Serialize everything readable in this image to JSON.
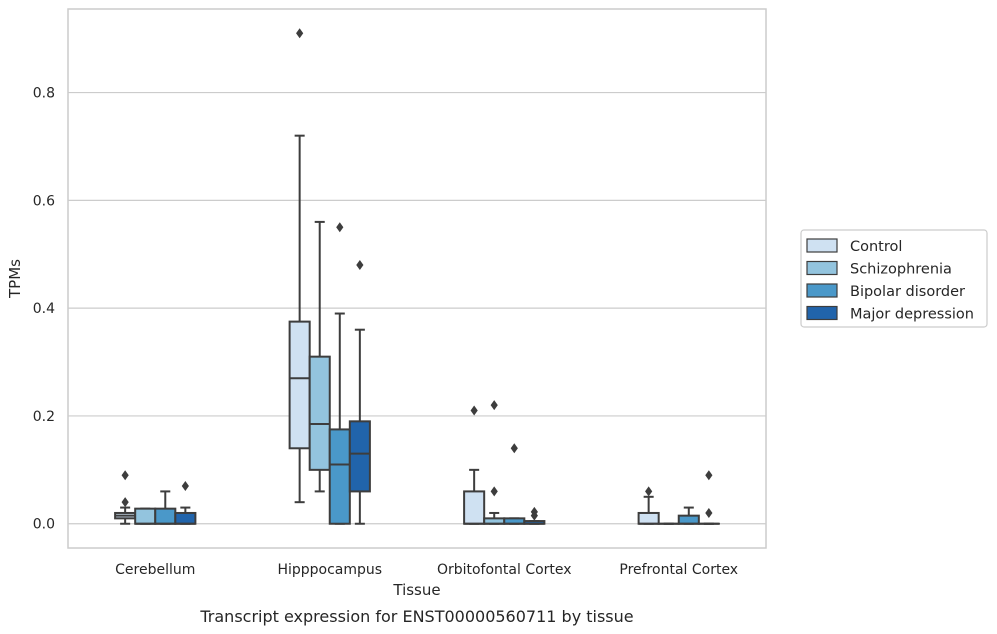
{
  "caption": "Transcript expression for ENST00000560711 by tissue",
  "chart_data": {
    "type": "boxplot",
    "xlabel": "Tissue",
    "ylabel": "TPMs",
    "ylim": [
      -0.045,
      0.955
    ],
    "yticks": [
      0.0,
      0.2,
      0.4,
      0.6,
      0.8
    ],
    "ytick_labels": [
      "0.0",
      "0.2",
      "0.4",
      "0.6",
      "0.8"
    ],
    "grid": "horizontal",
    "legend_position": "right",
    "categories": [
      "Cerebellum",
      "Hipppocampus",
      "Orbitofontal Cortex",
      "Prefrontal Cortex"
    ],
    "series": [
      {
        "name": "Control",
        "color": "#cfe1f2",
        "boxes": [
          {
            "whislo": 0.0,
            "q1": 0.01,
            "med": 0.015,
            "q3": 0.02,
            "whishi": 0.03,
            "fliers": [
              0.04,
              0.09
            ]
          },
          {
            "whislo": 0.04,
            "q1": 0.14,
            "med": 0.27,
            "q3": 0.375,
            "whishi": 0.72,
            "fliers": [
              0.91
            ]
          },
          {
            "whislo": 0.0,
            "q1": 0.0,
            "med": 0.0,
            "q3": 0.06,
            "whishi": 0.1,
            "fliers": [
              0.21
            ]
          },
          {
            "whislo": 0.0,
            "q1": 0.0,
            "med": 0.0,
            "q3": 0.02,
            "whishi": 0.05,
            "fliers": [
              0.06
            ]
          }
        ]
      },
      {
        "name": "Schizophrenia",
        "color": "#93c4de",
        "boxes": [
          {
            "whislo": 0.0,
            "q1": 0.0,
            "med": 0.0,
            "q3": 0.028,
            "whishi": 0.028,
            "fliers": []
          },
          {
            "whislo": 0.06,
            "q1": 0.1,
            "med": 0.185,
            "q3": 0.31,
            "whishi": 0.56,
            "fliers": []
          },
          {
            "whislo": 0.0,
            "q1": 0.0,
            "med": 0.0,
            "q3": 0.01,
            "whishi": 0.02,
            "fliers": [
              0.06,
              0.22
            ]
          },
          {
            "whislo": 0.0,
            "q1": 0.0,
            "med": 0.0,
            "q3": 0.0,
            "whishi": 0.0,
            "fliers": []
          }
        ]
      },
      {
        "name": "Bipolar disorder",
        "color": "#4a98c9",
        "boxes": [
          {
            "whislo": 0.0,
            "q1": 0.0,
            "med": 0.0,
            "q3": 0.028,
            "whishi": 0.06,
            "fliers": []
          },
          {
            "whislo": 0.0,
            "q1": 0.0,
            "med": 0.11,
            "q3": 0.175,
            "whishi": 0.39,
            "fliers": [
              0.55
            ]
          },
          {
            "whislo": 0.0,
            "q1": 0.0,
            "med": 0.0,
            "q3": 0.01,
            "whishi": 0.01,
            "fliers": [
              0.14
            ]
          },
          {
            "whislo": 0.0,
            "q1": 0.0,
            "med": 0.0,
            "q3": 0.015,
            "whishi": 0.03,
            "fliers": []
          }
        ]
      },
      {
        "name": "Major depression",
        "color": "#2164ab",
        "boxes": [
          {
            "whislo": 0.0,
            "q1": 0.0,
            "med": 0.0,
            "q3": 0.02,
            "whishi": 0.03,
            "fliers": [
              0.07
            ]
          },
          {
            "whislo": 0.0,
            "q1": 0.06,
            "med": 0.13,
            "q3": 0.19,
            "whishi": 0.36,
            "fliers": [
              0.48
            ]
          },
          {
            "whislo": 0.0,
            "q1": 0.0,
            "med": 0.0,
            "q3": 0.005,
            "whishi": 0.005,
            "fliers": [
              0.015,
              0.022
            ]
          },
          {
            "whislo": 0.0,
            "q1": 0.0,
            "med": 0.0,
            "q3": 0.0,
            "whishi": 0.0,
            "fliers": [
              0.02,
              0.09
            ]
          }
        ]
      }
    ]
  }
}
